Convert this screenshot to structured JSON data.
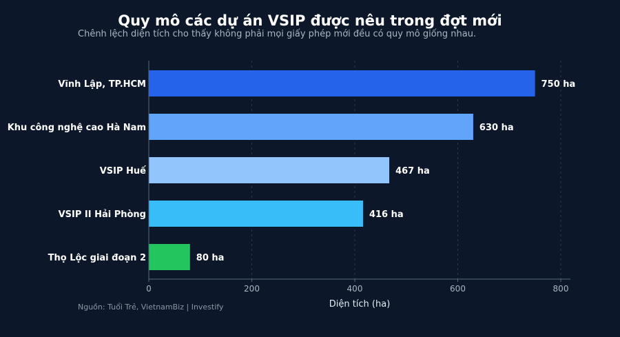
{
  "header": {
    "title": "Quy mô các dự án VSIP được nêu trong đợt mới",
    "subtitle": "Chênh lệch diện tích cho thấy không phải mọi giấy phép mới đều có quy mô giống nhau."
  },
  "footer": {
    "source": "Nguồn: Tuổi Trẻ, VietnamBiz | Investify"
  },
  "chart_data": {
    "type": "bar",
    "orientation": "horizontal",
    "categories": [
      "Vĩnh Lập, TP.HCM",
      "Khu công nghệ cao Hà Nam",
      "VSIP Huế",
      "VSIP II Hải Phòng",
      "Thọ Lộc giai đoạn 2"
    ],
    "values": [
      750,
      630,
      467,
      416,
      80
    ],
    "value_labels": [
      "750 ha",
      "630 ha",
      "467 ha",
      "416 ha",
      "80 ha"
    ],
    "colors": [
      "#2563eb",
      "#60a5fa",
      "#93c5fd",
      "#38bdf8",
      "#22c55e"
    ],
    "xlabel": "Diện tích (ha)",
    "ylabel": "",
    "xlim": [
      0,
      820
    ],
    "xticks": [
      0,
      200,
      400,
      600,
      800
    ],
    "grid": "vertical-dashed",
    "legend": "none"
  }
}
